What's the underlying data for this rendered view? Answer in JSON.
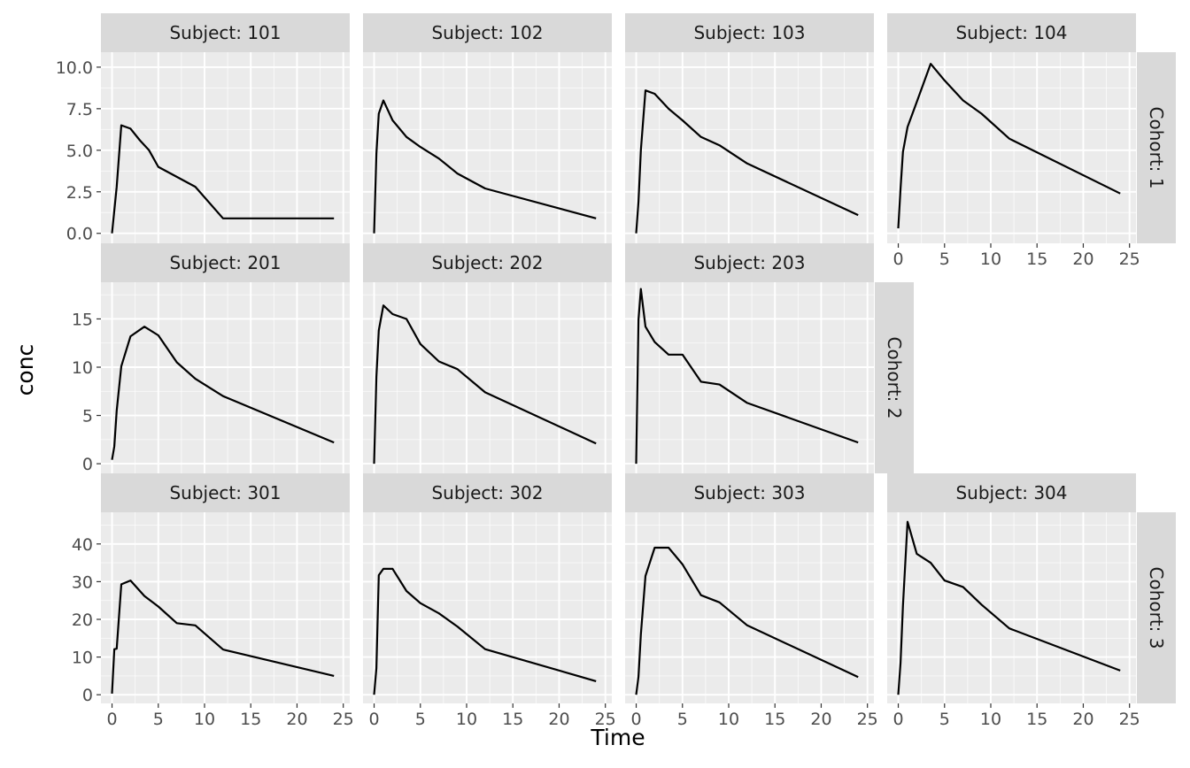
{
  "chart_data": {
    "type": "line",
    "xlabel": "Time",
    "ylabel": "conc",
    "x_ticks": [
      0,
      5,
      10,
      15,
      20,
      25
    ],
    "panel_label_prefix": "Subject: ",
    "row_label_prefix": "Cohort: ",
    "rows": [
      {
        "cohort": "1",
        "y_ticks": [
          "0.0",
          "2.5",
          "5.0",
          "7.5",
          "10.0"
        ],
        "y_range": [
          -0.6,
          10.9
        ],
        "panels": [
          {
            "subject": "101",
            "x": [
              0,
              0.5,
              1,
              2,
              3,
              4,
              5,
              7,
              9,
              12,
              24
            ],
            "y": [
              0.0,
              2.8,
              6.5,
              6.3,
              5.6,
              5.0,
              4.0,
              3.4,
              2.8,
              0.9,
              0.9
            ]
          },
          {
            "subject": "102",
            "x": [
              0,
              0.25,
              0.5,
              1,
              2,
              3.5,
              5,
              7,
              9,
              12,
              24
            ],
            "y": [
              0.0,
              4.8,
              7.2,
              8.0,
              6.8,
              5.8,
              5.2,
              4.5,
              3.6,
              2.7,
              0.9
            ]
          },
          {
            "subject": "103",
            "x": [
              0,
              0.25,
              0.5,
              1,
              2,
              3.5,
              5,
              7,
              9,
              12,
              24
            ],
            "y": [
              0.0,
              1.9,
              5.0,
              8.6,
              8.4,
              7.5,
              6.8,
              5.8,
              5.3,
              4.2,
              1.1
            ]
          },
          {
            "subject": "104",
            "x": [
              0,
              0.25,
              0.5,
              1,
              2,
              3.5,
              5,
              7,
              9,
              12,
              24
            ],
            "y": [
              0.3,
              2.7,
              4.9,
              6.4,
              7.9,
              10.2,
              9.2,
              8.0,
              7.2,
              5.7,
              2.4
            ]
          }
        ]
      },
      {
        "cohort": "2",
        "y_ticks": [
          "0",
          "5",
          "10",
          "15"
        ],
        "y_range": [
          -1.0,
          18.8
        ],
        "panels": [
          {
            "subject": "201",
            "x": [
              0,
              0.25,
              0.5,
              1,
              2,
              3.5,
              5,
              7,
              9,
              12,
              24
            ],
            "y": [
              0.4,
              1.8,
              5.5,
              10.1,
              13.2,
              14.2,
              13.3,
              10.5,
              8.8,
              7.0,
              2.2
            ]
          },
          {
            "subject": "202",
            "x": [
              0,
              0.25,
              0.5,
              1,
              2,
              3.5,
              5,
              7,
              9,
              12,
              24
            ],
            "y": [
              0.0,
              9.0,
              13.8,
              16.4,
              15.5,
              15.0,
              12.4,
              10.6,
              9.8,
              7.4,
              2.1
            ]
          },
          {
            "subject": "203",
            "x": [
              0,
              0.25,
              0.5,
              1,
              2,
              3.5,
              5,
              7,
              9,
              12,
              24
            ],
            "y": [
              0.0,
              14.9,
              18.1,
              14.2,
              12.6,
              11.3,
              11.3,
              8.5,
              8.2,
              6.3,
              2.2
            ]
          }
        ]
      },
      {
        "cohort": "3",
        "y_ticks": [
          "0",
          "10",
          "20",
          "30",
          "40"
        ],
        "y_range": [
          -2.3,
          48.4
        ],
        "panels": [
          {
            "subject": "301",
            "x": [
              0,
              0.25,
              0.5,
              1,
              2,
              3.5,
              5,
              7,
              9,
              12,
              24
            ],
            "y": [
              0.3,
              12.1,
              12.2,
              29.3,
              30.3,
              26.2,
              23.4,
              19.0,
              18.4,
              12.0,
              5.0
            ]
          },
          {
            "subject": "302",
            "x": [
              0,
              0.25,
              0.5,
              1,
              2,
              3.5,
              5,
              7,
              9,
              12,
              24
            ],
            "y": [
              0.0,
              7.0,
              31.7,
              33.4,
              33.4,
              27.5,
              24.3,
              21.6,
              18.1,
              12.1,
              3.6
            ]
          },
          {
            "subject": "303",
            "x": [
              0,
              0.25,
              0.5,
              1,
              2,
              3.5,
              5,
              7,
              9,
              12,
              24
            ],
            "y": [
              0.0,
              4.8,
              16.0,
              31.5,
              39.0,
              39.0,
              34.6,
              26.4,
              24.5,
              18.4,
              4.7
            ]
          },
          {
            "subject": "304",
            "x": [
              0,
              0.25,
              0.5,
              1,
              2,
              3.5,
              5,
              7,
              9,
              12,
              24
            ],
            "y": [
              0.0,
              8.5,
              23.6,
              45.9,
              37.4,
              35.0,
              30.3,
              28.6,
              23.9,
              17.6,
              6.4
            ]
          }
        ]
      }
    ]
  }
}
